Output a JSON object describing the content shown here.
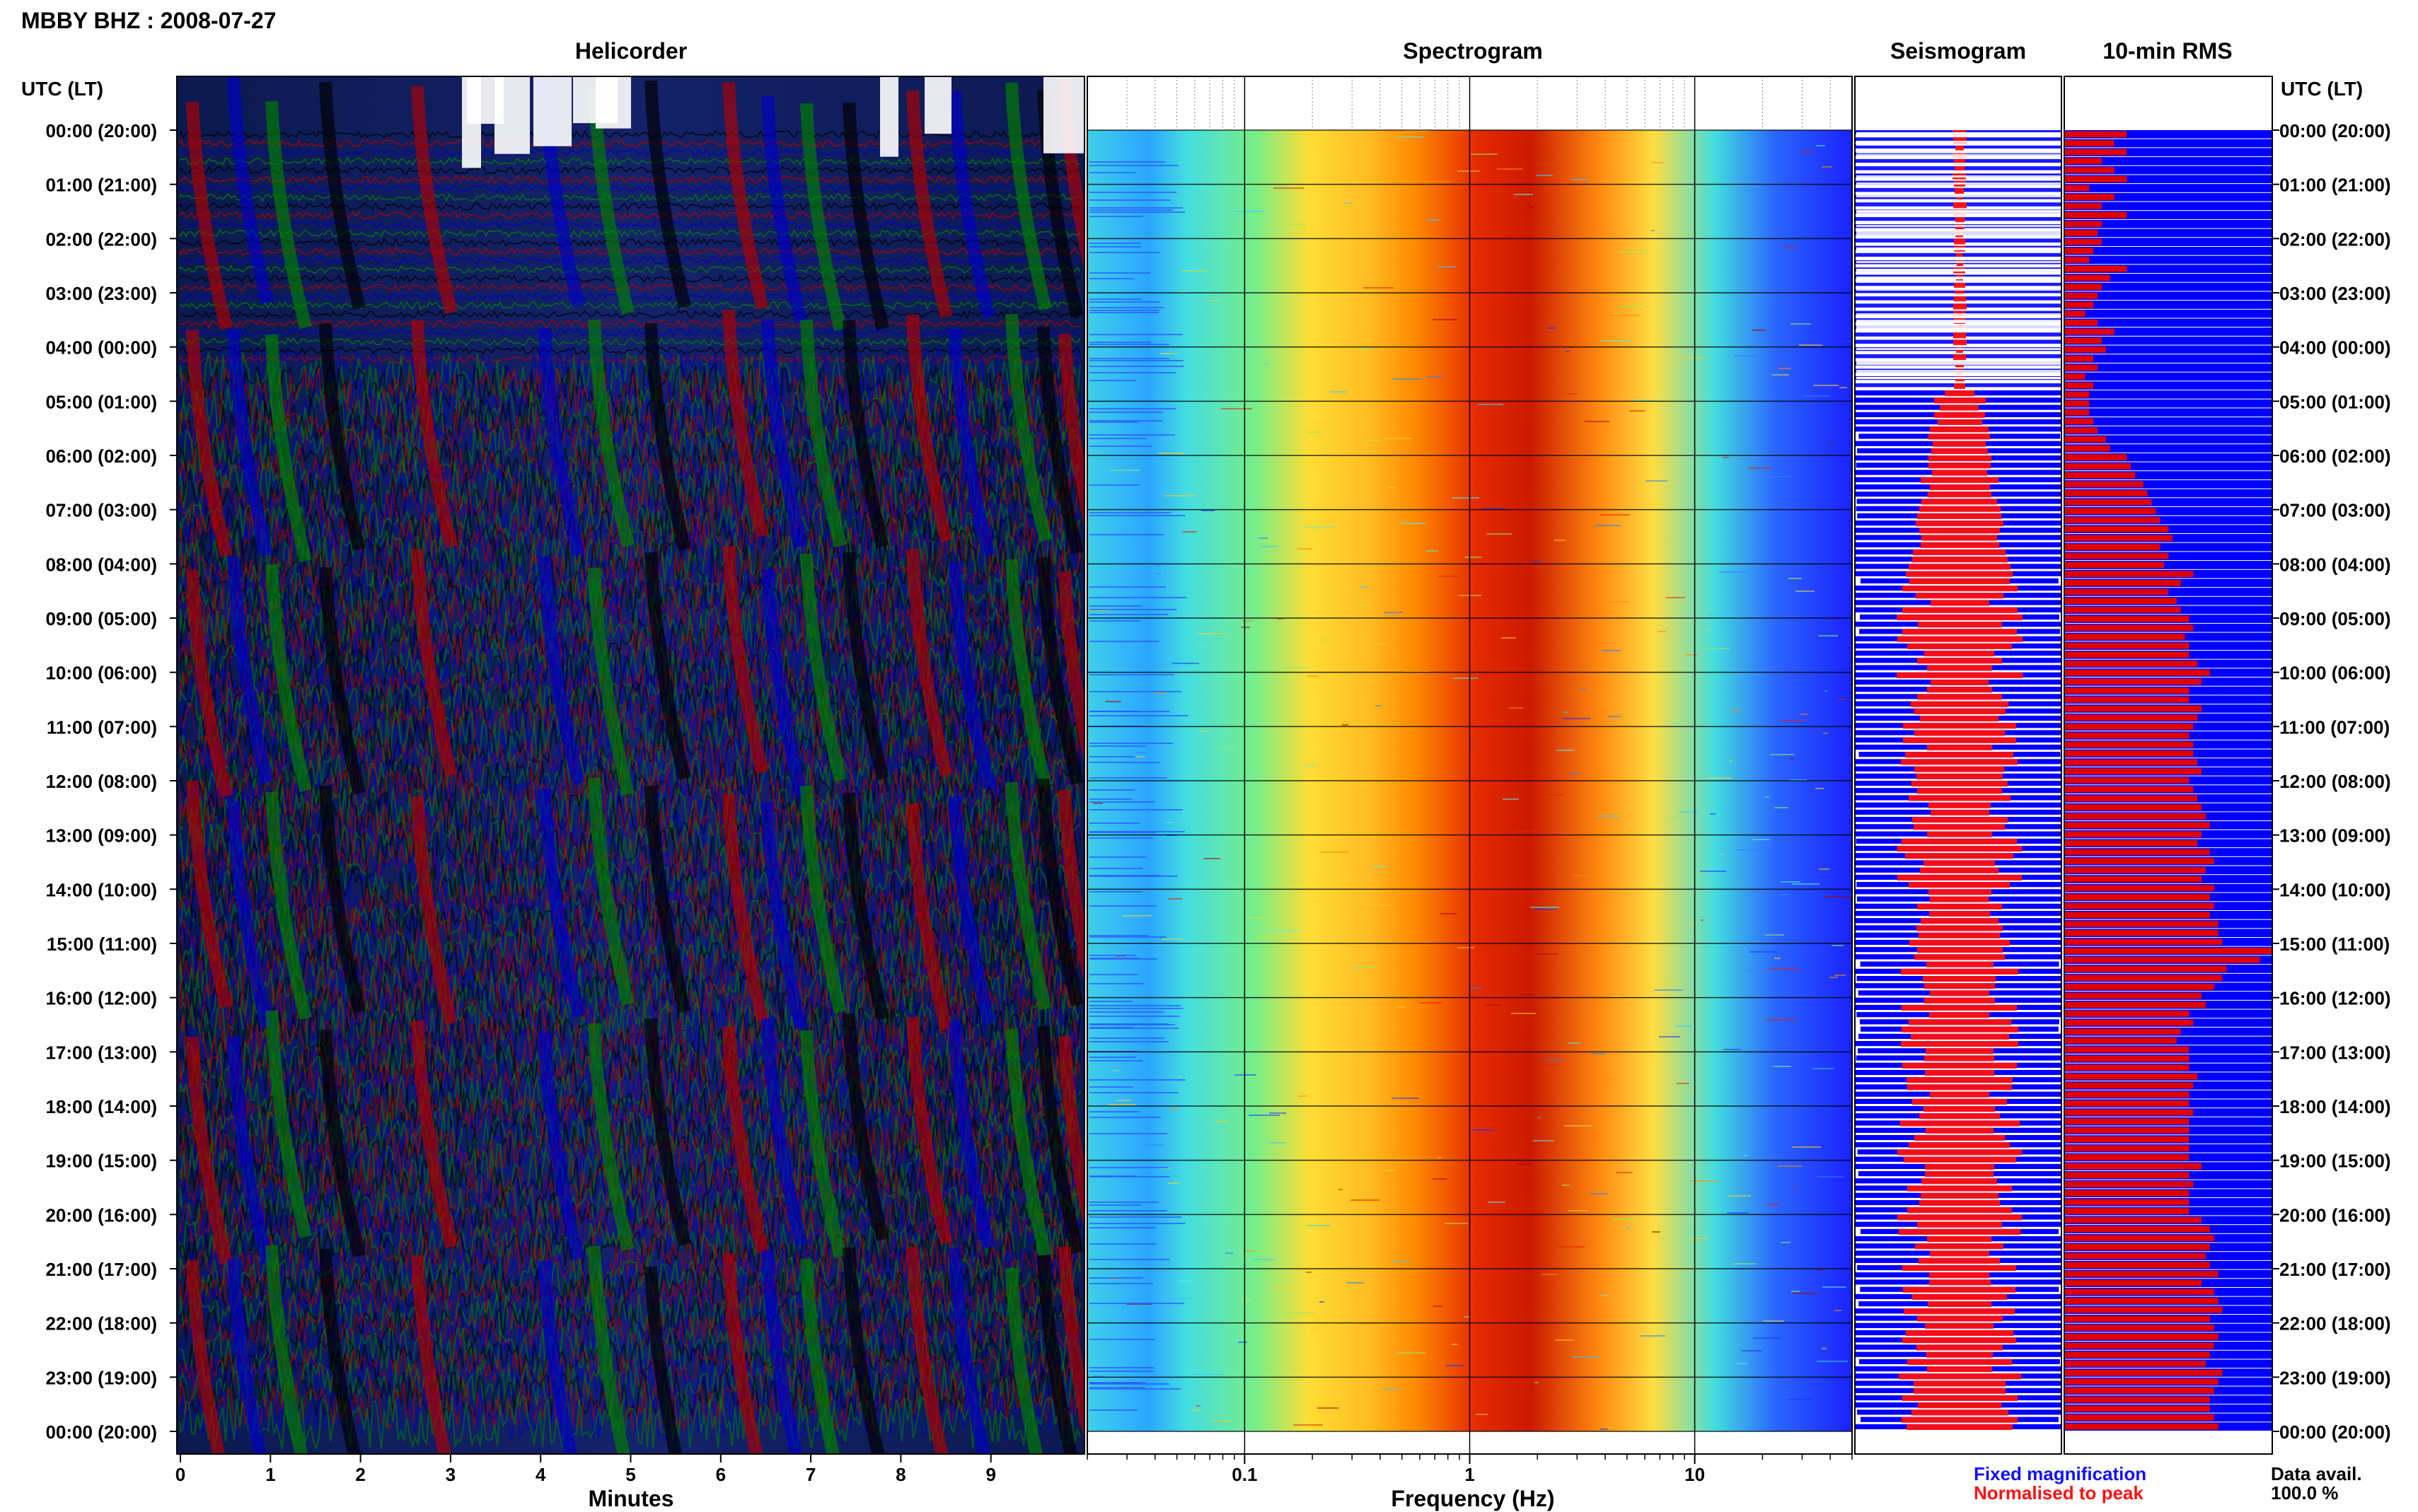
{
  "header": {
    "title": "MBBY BHZ : 2008-07-27"
  },
  "panels": {
    "helicorder": "Helicorder",
    "spectrogram": "Spectrogram",
    "seismogram": "Seismogram",
    "rms": "10-min RMS"
  },
  "axes": {
    "left_time_title": "UTC (LT)",
    "right_time_title": "UTC (LT)",
    "minutes_label": "Minutes",
    "frequency_label": "Frequency (Hz)"
  },
  "legend": {
    "fixed": "Fixed magnification",
    "normalised": "Normalised to peak",
    "fixed_color": "#1010ff",
    "normalised_color": "#ff1010"
  },
  "data_avail": {
    "label": "Data avail.",
    "value": "100.0 %"
  },
  "colors": {
    "helicorder_traces": [
      "#000000",
      "#b00000",
      "#0000c8",
      "#008000"
    ],
    "spectrogram_scale": [
      "#1a33ff",
      "#2a7fff",
      "#33ccff",
      "#55eedd",
      "#88ee66",
      "#dddd33",
      "#ffcc22",
      "#ff8800",
      "#e82000",
      "#b00000"
    ],
    "rms_fixed": "#0000ff",
    "rms_normalised": "#e00000"
  },
  "chart_data": [
    {
      "type": "heatmap",
      "name_shown": "Helicorder",
      "ylabels": [
        "00:00 (20:00)",
        "01:00 (21:00)",
        "02:00 (22:00)",
        "03:00 (23:00)",
        "04:00 (00:00)",
        "05:00 (01:00)",
        "06:00 (02:00)",
        "07:00 (03:00)",
        "08:00 (04:00)",
        "09:00 (05:00)",
        "10:00 (06:00)",
        "11:00 (07:00)",
        "12:00 (08:00)",
        "13:00 (09:00)",
        "14:00 (10:00)",
        "15:00 (11:00)",
        "16:00 (12:00)",
        "17:00 (13:00)",
        "18:00 (14:00)",
        "19:00 (15:00)",
        "20:00 (16:00)",
        "21:00 (17:00)",
        "22:00 (18:00)",
        "23:00 (19:00)",
        "00:00 (20:00)"
      ],
      "xticks": [
        "0",
        "1",
        "2",
        "3",
        "4",
        "5",
        "6",
        "7",
        "8",
        "9"
      ],
      "xlim": [
        0,
        10
      ],
      "xlabel": "Minutes"
    },
    {
      "type": "heatmap",
      "name_shown": "Spectrogram",
      "xscale": "log",
      "xlim": [
        0.02,
        50
      ],
      "xticks": [
        "0.1",
        "1",
        "10"
      ],
      "xtick_values": [
        0.1,
        1,
        10
      ],
      "xlabel": "Frequency (Hz)",
      "dominant_band_hz": [
        1,
        4
      ]
    },
    {
      "type": "bar",
      "name_shown": "10-min RMS",
      "orientation": "horizontal",
      "series": [
        {
          "name": "Fixed magnification",
          "values": [
            1,
            1,
            1,
            1,
            1,
            1,
            1,
            1,
            1,
            1,
            1,
            1,
            1,
            1,
            1,
            1,
            1,
            1,
            1,
            1,
            1,
            1,
            1,
            1,
            1,
            1,
            1,
            1,
            1,
            1,
            1,
            1,
            1,
            1,
            1,
            1,
            1,
            1,
            1,
            1,
            1,
            1,
            1,
            1,
            1,
            1,
            1,
            1,
            1,
            1,
            1,
            1,
            1,
            1,
            1,
            1,
            1,
            1,
            1,
            1,
            1,
            1,
            1,
            1,
            1,
            1,
            1,
            1,
            1,
            1,
            1,
            1,
            1,
            1,
            1,
            1,
            1,
            1,
            1,
            1,
            1,
            1,
            1,
            1,
            1,
            1,
            1,
            1,
            1,
            1,
            1,
            1,
            1,
            1,
            1,
            1,
            1,
            1,
            1,
            1,
            1,
            1,
            1,
            1,
            1,
            1,
            1,
            1,
            1,
            1,
            1,
            1,
            1,
            1,
            1,
            1,
            1,
            1,
            1,
            1,
            1,
            1,
            1,
            1,
            1,
            1,
            1,
            1,
            1,
            1,
            1,
            1,
            1,
            1,
            1,
            1,
            1,
            1,
            1,
            1,
            1,
            1,
            1,
            1,
            1
          ]
        },
        {
          "name": "Normalised to peak",
          "values": [
            0.3,
            0.24,
            0.3,
            0.18,
            0.24,
            0.3,
            0.12,
            0.24,
            0.18,
            0.3,
            0.18,
            0.16,
            0.18,
            0.14,
            0.12,
            0.3,
            0.22,
            0.18,
            0.16,
            0.14,
            0.1,
            0.16,
            0.24,
            0.18,
            0.2,
            0.14,
            0.16,
            0.1,
            0.14,
            0.12,
            0.12,
            0.12,
            0.14,
            0.16,
            0.2,
            0.22,
            0.3,
            0.32,
            0.34,
            0.38,
            0.4,
            0.42,
            0.44,
            0.46,
            0.5,
            0.52,
            0.46,
            0.5,
            0.48,
            0.62,
            0.56,
            0.5,
            0.54,
            0.56,
            0.6,
            0.62,
            0.58,
            0.6,
            0.6,
            0.64,
            0.7,
            0.66,
            0.6,
            0.6,
            0.66,
            0.64,
            0.62,
            0.6,
            0.62,
            0.62,
            0.64,
            0.66,
            0.6,
            0.62,
            0.64,
            0.66,
            0.68,
            0.7,
            0.66,
            0.64,
            0.7,
            0.72,
            0.68,
            0.66,
            0.72,
            0.7,
            0.72,
            0.7,
            0.74,
            0.74,
            0.76,
            1.0,
            0.94,
            0.78,
            0.76,
            0.72,
            0.66,
            0.68,
            0.6,
            0.62,
            0.56,
            0.54,
            0.6,
            0.6,
            0.6,
            0.64,
            0.62,
            0.6,
            0.6,
            0.62,
            0.6,
            0.6,
            0.6,
            0.6,
            0.6,
            0.66,
            0.6,
            0.62,
            0.6,
            0.6,
            0.6,
            0.66,
            0.7,
            0.72,
            0.7,
            0.68,
            0.7,
            0.74,
            0.66,
            0.72,
            0.74,
            0.76,
            0.7,
            0.72,
            0.74,
            0.72,
            0.7,
            0.68,
            0.76,
            0.74,
            0.72,
            0.7,
            0.7,
            0.72,
            0.74
          ]
        }
      ]
    }
  ]
}
